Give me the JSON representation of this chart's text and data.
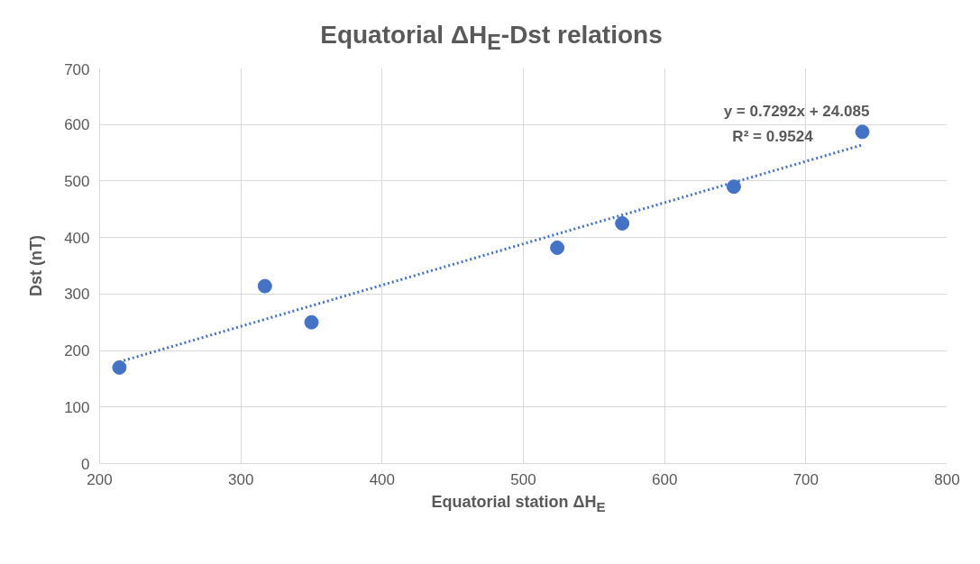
{
  "chart_data": {
    "type": "scatter",
    "title": "Equatorial ΔH$_{E}$-Dst relations",
    "xlabel": "Equatorial station ΔH$_{E}$",
    "ylabel": "Dst (nT)",
    "series": [
      {
        "color": "#4472c4",
        "marker": "circle",
        "x": [
          214,
          317,
          350,
          524,
          570,
          649,
          740
        ],
        "values": [
          170,
          314,
          250,
          382,
          425,
          490,
          587
        ]
      },
      {
        "type": "line",
        "color": "#4472c4",
        "line_style": "dotted",
        "x": [
          214,
          740
        ],
        "values": [
          180,
          564
        ]
      }
    ],
    "annotations": [
      "y = 0.7292x + 24.085",
      "R² = 0.9524"
    ],
    "xlim": [
      200,
      800
    ],
    "xticks": [
      200,
      300,
      400,
      500,
      600,
      700,
      800
    ],
    "ylim": [
      0,
      700
    ],
    "yticks": [
      0,
      100,
      200,
      300,
      400,
      500,
      600,
      700
    ],
    "grid": true
  }
}
